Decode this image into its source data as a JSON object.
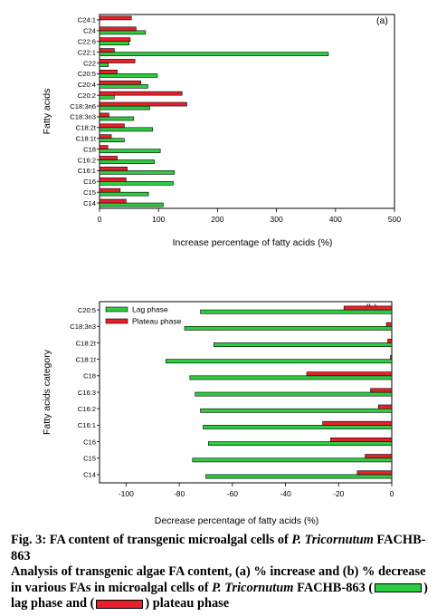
{
  "chart_data": [
    {
      "type": "bar",
      "orientation": "horizontal",
      "panel_label": "(a)",
      "xlabel": "Increase percentage of fatty acids (%)",
      "ylabel": "Fatty acids",
      "xlim": [
        0,
        500
      ],
      "xticks": [
        "0",
        "100",
        "200",
        "300",
        "400",
        "500"
      ],
      "categories": [
        "C24:1",
        "C24",
        "C22:6",
        "C22:1",
        "C22",
        "C20:5",
        "C20:4",
        "C20:2",
        "C18:3n6",
        "C18:3n3",
        "C18:2t",
        "C18:1t",
        "C18",
        "C16:2",
        "C16:1",
        "C16",
        "C15",
        "C14"
      ],
      "series": [
        {
          "color": "#2ecc40",
          "values": [
            0,
            78,
            50,
            388,
            15,
            98,
            82,
            25,
            85,
            58,
            90,
            42,
            103,
            93,
            127,
            125,
            83,
            108
          ]
        },
        {
          "color": "#e8202a",
          "values": [
            54,
            62,
            52,
            25,
            60,
            30,
            70,
            140,
            148,
            16,
            42,
            20,
            14,
            30,
            47,
            45,
            35,
            45
          ]
        }
      ]
    },
    {
      "type": "bar",
      "orientation": "horizontal",
      "panel_label": "(b)",
      "xlabel": "Decrease percentage of fatty acids (%)",
      "ylabel": "Fatty acids category",
      "xlim": [
        -110,
        0
      ],
      "xticks": [
        "-100",
        "-80",
        "-60",
        "-40",
        "-20",
        "0"
      ],
      "legend": "top-left",
      "categories": [
        "C20:5",
        "C18:3n3",
        "C18:2t",
        "C18:1t",
        "C18",
        "C16:3",
        "C16:2",
        "C16:1",
        "C16",
        "C15",
        "C14"
      ],
      "series": [
        {
          "name": "Lag phase",
          "color": "#2ecc40",
          "values": [
            -72,
            -78,
            -67,
            -85,
            -76,
            -74,
            -72,
            -71,
            -69,
            -75,
            -70
          ]
        },
        {
          "name": "Plateau phase",
          "color": "#e8202a",
          "values": [
            -18,
            -2,
            -1.5,
            -0.5,
            -32,
            -8,
            -5,
            -26,
            -23,
            -10,
            -13
          ]
        }
      ]
    }
  ],
  "caption": {
    "title_prefix": "Fig. 3: FA content of transgenic microalgal cells of ",
    "title_species": "P. Tricornutum",
    "title_suffix": " FACHB-863",
    "body_part1": "Analysis of transgenic algae FA content, (a) % increase and (b) % decrease in various FAs in microalgal cells of ",
    "body_species": "P. Tricornutum",
    "body_part2": " FACHB-863 (",
    "body_part3": ") lag phase and (",
    "body_part4": ") plateau phase"
  }
}
